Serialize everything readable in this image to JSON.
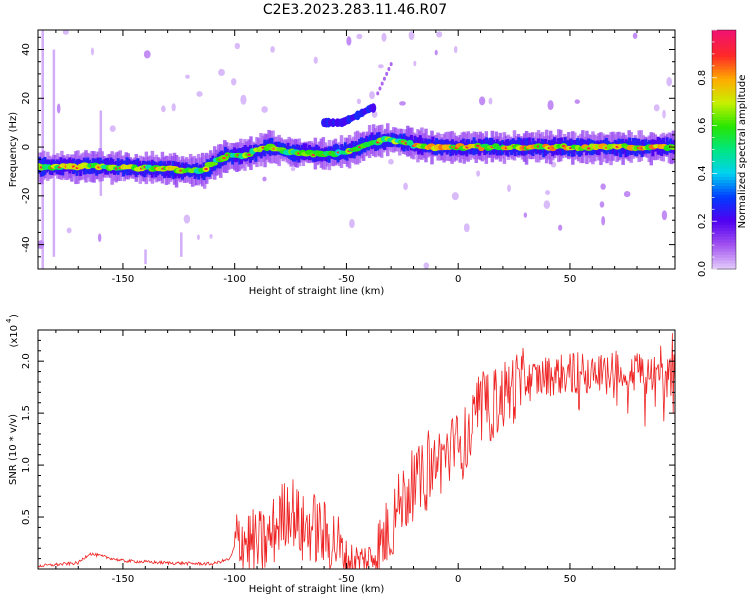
{
  "title": "C2E3.2023.283.11.46.R07",
  "chart_data": [
    {
      "type": "heatmap",
      "xlabel": "Height of straight line (km)",
      "ylabel": "Frequency (Hz)",
      "xlim": [
        -188,
        97
      ],
      "ylim": [
        -50,
        48
      ],
      "xticks": [
        -150,
        -100,
        -50,
        0,
        50
      ],
      "yticks": [
        -40,
        -20,
        0,
        20,
        40
      ],
      "colorbar": {
        "label": "Normalized spectral amplitude",
        "range": [
          0.0,
          1.0
        ],
        "ticks": [
          0.0,
          0.2,
          0.4,
          0.6,
          0.8
        ],
        "colormap": "rainbow"
      },
      "ridge": {
        "description_points_x": [
          -188,
          -160,
          -130,
          -115,
          -105,
          -95,
          -85,
          -75,
          -60,
          -50,
          -40,
          -30,
          -20,
          -10,
          0,
          20,
          40,
          60,
          80,
          97
        ],
        "description_points_y": [
          -8,
          -8,
          -9,
          -10,
          -4,
          -3,
          0,
          -2,
          -3,
          -2,
          2,
          3,
          1,
          0,
          0,
          0,
          0,
          0,
          0,
          0
        ]
      },
      "secondary_branch": {
        "x": [
          -52,
          -45,
          -39
        ],
        "y": [
          10,
          13,
          16
        ]
      }
    },
    {
      "type": "line",
      "xlabel": "Height of straight line (km)",
      "ylabel": "SNR (10 * v/v)",
      "yunit": "(x10",
      "yunit_exp": "4",
      "yunit_close": ")",
      "xlim": [
        -188,
        97
      ],
      "ylim": [
        0,
        2.3
      ],
      "xticks": [
        -150,
        -100,
        -50,
        0,
        50
      ],
      "yticks": [
        0.5,
        1.0,
        1.5,
        2.0
      ],
      "series": [
        {
          "color": "#ee2222",
          "envelope_x": [
            -188,
            -170,
            -165,
            -150,
            -130,
            -110,
            -102,
            -98,
            -90,
            -85,
            -80,
            -75,
            -70,
            -65,
            -60,
            -55,
            -50,
            -45,
            -40,
            -35,
            -30,
            -25,
            -20,
            -15,
            -10,
            -5,
            0,
            5,
            8,
            10,
            15,
            20,
            25,
            30,
            35,
            40,
            50,
            60,
            70,
            75,
            80,
            85,
            90,
            97
          ],
          "envelope_y": [
            0.03,
            0.06,
            0.15,
            0.08,
            0.06,
            0.05,
            0.1,
            0.35,
            0.25,
            0.3,
            0.5,
            0.65,
            0.4,
            0.45,
            0.35,
            0.3,
            0.1,
            0.08,
            0.1,
            0.25,
            0.45,
            0.7,
            0.85,
            0.9,
            1.05,
            1.15,
            1.2,
            1.3,
            1.45,
            1.55,
            1.6,
            1.7,
            1.78,
            1.82,
            1.85,
            1.88,
            1.9,
            1.92,
            1.93,
            1.9,
            1.92,
            1.9,
            1.88,
            1.86
          ]
        }
      ]
    }
  ]
}
